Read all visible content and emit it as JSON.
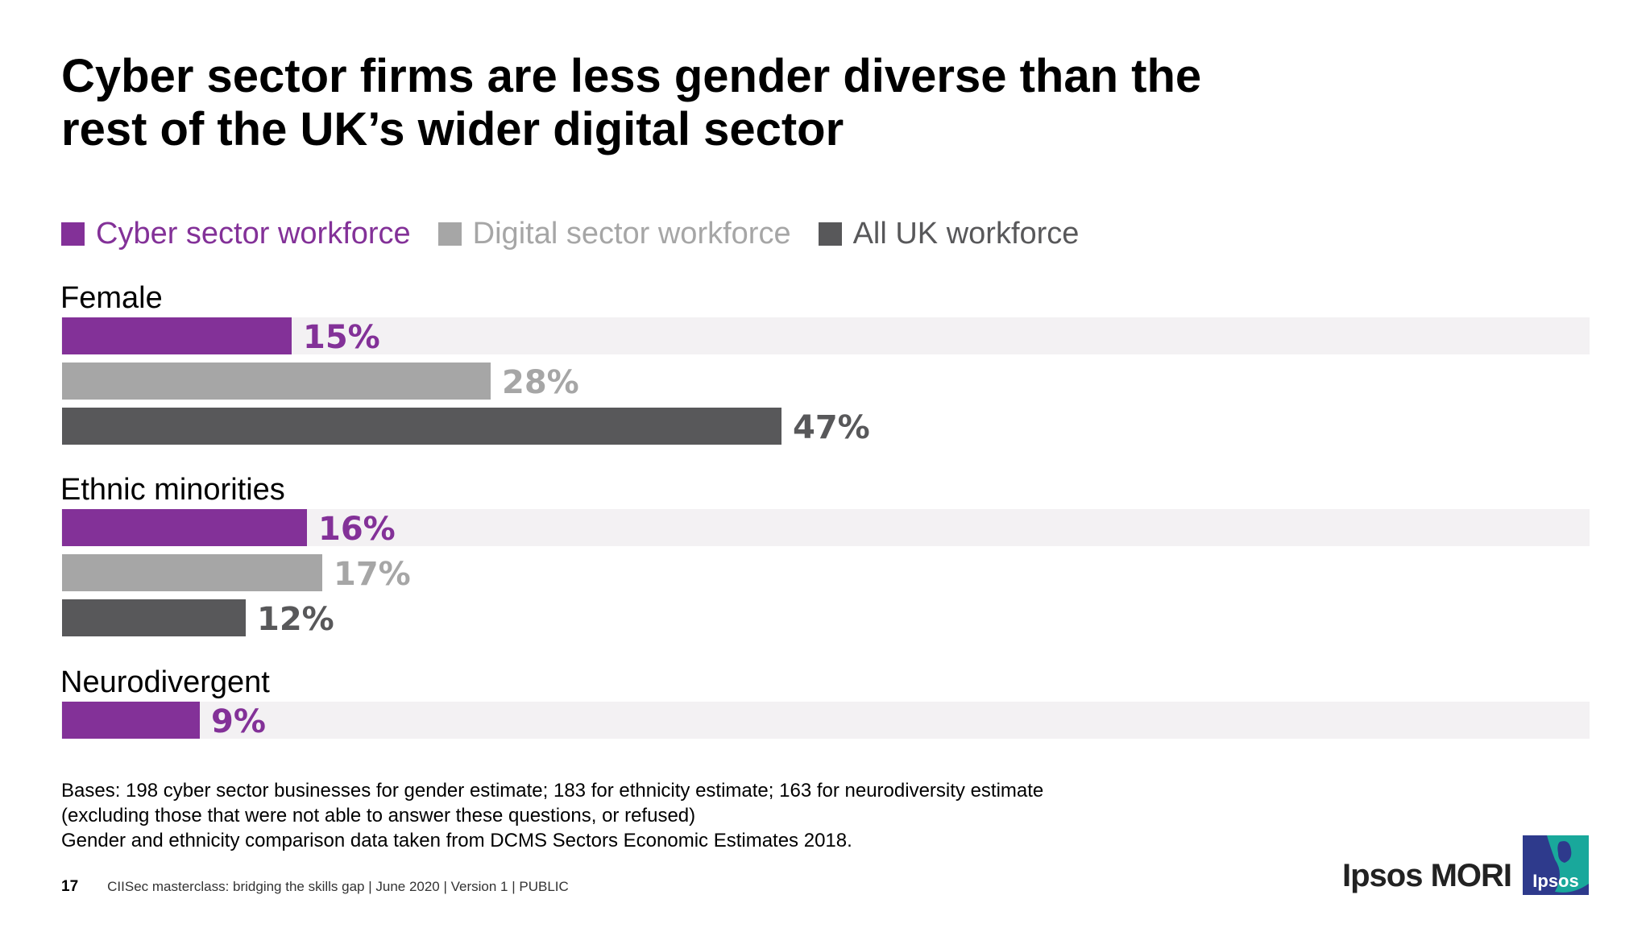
{
  "slide": {
    "title_line1": "Cyber sector firms are less gender diverse than the",
    "title_line2": "rest of the UK’s wider digital sector",
    "footnote_line1": "Bases: 198 cyber sector businesses for gender estimate; 183 for ethnicity estimate; 163 for neurodiversity estimate",
    "footnote_line2": "(excluding those that were not able to answer these questions, or refused)",
    "footnote_line3": "Gender and ethnicity comparison data taken from DCMS Sectors Economic Estimates 2018.",
    "page_number": "17",
    "footer_text": "CIISec masterclass: bridging the skills gap | June 2020 | Version 1 | PUBLIC",
    "brand_text": "Ipsos MORI",
    "logo_text": "Ipsos",
    "logo_icon": "ipsos-logo-icon"
  },
  "colors": {
    "cyber": "#833198",
    "digital": "#a6a6a6",
    "all_uk": "#58585a",
    "track": "#f3f1f3",
    "logo_blue": "#2e3a8c",
    "logo_teal": "#19a89b"
  },
  "chart_data": {
    "type": "bar",
    "orientation": "horizontal",
    "categories": [
      "Female",
      "Ethnic minorities",
      "Neurodivergent"
    ],
    "series": [
      {
        "name": "Cyber sector workforce",
        "values": [
          15,
          16,
          9
        ],
        "labels": [
          "15%",
          "16%",
          "9%"
        ]
      },
      {
        "name": "Digital sector workforce",
        "values": [
          28,
          17,
          null
        ],
        "labels": [
          "28%",
          "17%",
          ""
        ]
      },
      {
        "name": "All UK workforce",
        "values": [
          47,
          12,
          null
        ],
        "labels": [
          "47%",
          "12%",
          ""
        ]
      }
    ],
    "xlim": [
      0,
      100
    ],
    "legend": "top-left",
    "grid": false
  }
}
